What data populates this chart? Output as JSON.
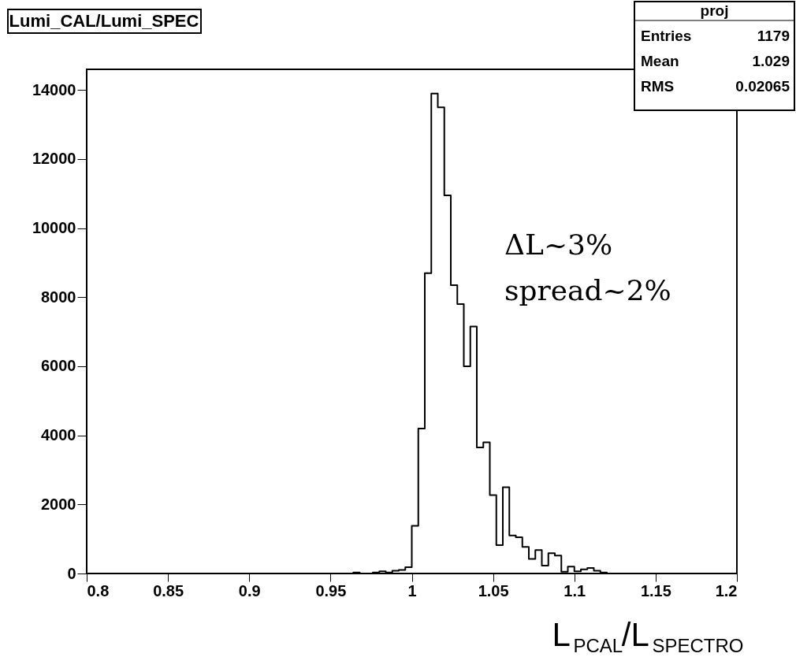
{
  "chart_data": {
    "type": "histogram",
    "title": "Lumi_CAL/Lumi_SPEC",
    "xlabel": "L$_{PCAL}$/L$_{SPECTRO}$",
    "bins": [
      0.8,
      0.804,
      0.808,
      0.812,
      0.816,
      0.82,
      0.824,
      0.828,
      0.832,
      0.836,
      0.84,
      0.844,
      0.848,
      0.852,
      0.856,
      0.86,
      0.864,
      0.868,
      0.872,
      0.876,
      0.88,
      0.884,
      0.888,
      0.892,
      0.896,
      0.9,
      0.904,
      0.908,
      0.912,
      0.916,
      0.92,
      0.924,
      0.928,
      0.932,
      0.936,
      0.94,
      0.944,
      0.948,
      0.952,
      0.956,
      0.96,
      0.964,
      0.968,
      0.972,
      0.976,
      0.98,
      0.984,
      0.988,
      0.992,
      0.996,
      1.0,
      1.004,
      1.008,
      1.012,
      1.016,
      1.02,
      1.024,
      1.028,
      1.032,
      1.036,
      1.04,
      1.044,
      1.048,
      1.052,
      1.056,
      1.06,
      1.064,
      1.068,
      1.072,
      1.076,
      1.08,
      1.084,
      1.088,
      1.092,
      1.096,
      1.1,
      1.104,
      1.108,
      1.112,
      1.116,
      1.12,
      1.124,
      1.128,
      1.132,
      1.136,
      1.14,
      1.144,
      1.148,
      1.152,
      1.156,
      1.16,
      1.164,
      1.168,
      1.172,
      1.176,
      1.18,
      1.184,
      1.188,
      1.192,
      1.196,
      1.2
    ],
    "values": [
      0,
      0,
      0,
      0,
      0,
      0,
      0,
      0,
      0,
      0,
      0,
      0,
      0,
      0,
      0,
      0,
      0,
      0,
      0,
      0,
      0,
      0,
      0,
      0,
      0,
      0,
      0,
      0,
      0,
      0,
      0,
      0,
      0,
      0,
      0,
      0,
      0,
      0,
      0,
      0,
      0,
      30,
      0,
      0,
      30,
      60,
      30,
      80,
      100,
      180,
      1380,
      4200,
      8700,
      13900,
      13500,
      10950,
      8350,
      7800,
      6000,
      7150,
      3650,
      3800,
      2270,
      820,
      2500,
      1100,
      1050,
      770,
      420,
      680,
      230,
      590,
      520,
      50,
      200,
      60,
      120,
      160,
      80,
      30,
      0,
      0,
      0,
      0,
      0,
      0,
      0,
      0,
      0,
      0,
      0,
      0,
      0,
      0,
      0,
      0,
      0,
      0,
      0,
      0
    ],
    "color": "#000000",
    "xlim": [
      0.8,
      1.2
    ],
    "xticks": [
      0.8,
      0.85,
      0.9,
      0.95,
      1,
      1.05,
      1.1,
      1.15,
      1.2
    ],
    "ylim": [
      0,
      14600
    ],
    "yticks": [
      0,
      2000,
      4000,
      6000,
      8000,
      10000,
      12000,
      14000
    ],
    "grid": false,
    "annotations": [
      "proj",
      "Entries",
      "1179",
      "Mean",
      "1.029",
      "RMS",
      "0.02065",
      "ΔL~3%",
      "spread~2%"
    ]
  }
}
